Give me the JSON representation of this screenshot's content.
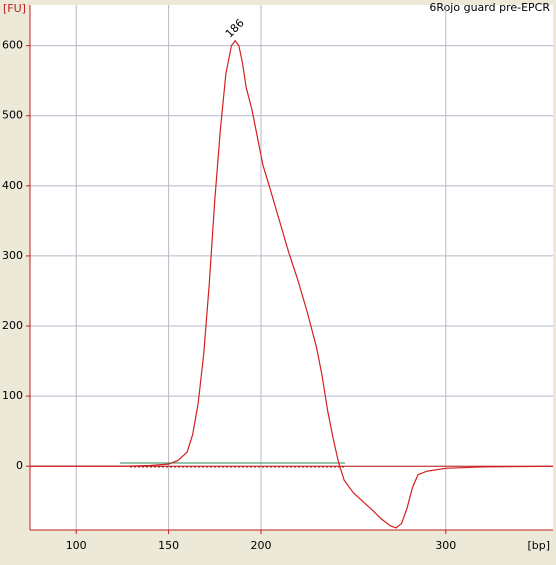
{
  "chart_data": {
    "type": "line",
    "title": "6Rojo guard pre-EPCR",
    "y_label": "[FU]",
    "x_label": "[bp]",
    "peak_label": {
      "text": "186",
      "x": 186,
      "y": 607
    },
    "xlim": [
      75,
      358
    ],
    "ylim": [
      -91,
      658
    ],
    "xticks": [
      100,
      150,
      200,
      300
    ],
    "yticks": [
      0,
      100,
      200,
      300,
      400,
      500,
      600
    ],
    "grid": true,
    "series": [
      {
        "name": "6Rojo guard pre-EPCR",
        "color": "#d42020",
        "x": [
          75,
          100,
          125,
          140,
          150,
          155,
          160,
          163,
          166,
          169,
          172,
          175,
          178,
          181,
          184,
          186,
          188,
          190,
          192,
          195,
          198,
          201,
          205,
          210,
          215,
          220,
          225,
          230,
          233,
          236,
          239,
          242,
          245,
          250,
          255,
          260,
          265,
          270,
          273,
          276,
          279,
          282,
          285,
          290,
          300,
          320,
          358
        ],
        "values": [
          0,
          0,
          0,
          1,
          3,
          8,
          20,
          45,
          90,
          160,
          260,
          380,
          480,
          560,
          600,
          607,
          600,
          575,
          540,
          510,
          470,
          430,
          395,
          350,
          305,
          265,
          220,
          170,
          130,
          80,
          40,
          5,
          -20,
          -38,
          -50,
          -62,
          -75,
          -85,
          -88,
          -82,
          -60,
          -30,
          -12,
          -7,
          -3,
          -1,
          0
        ]
      }
    ]
  }
}
